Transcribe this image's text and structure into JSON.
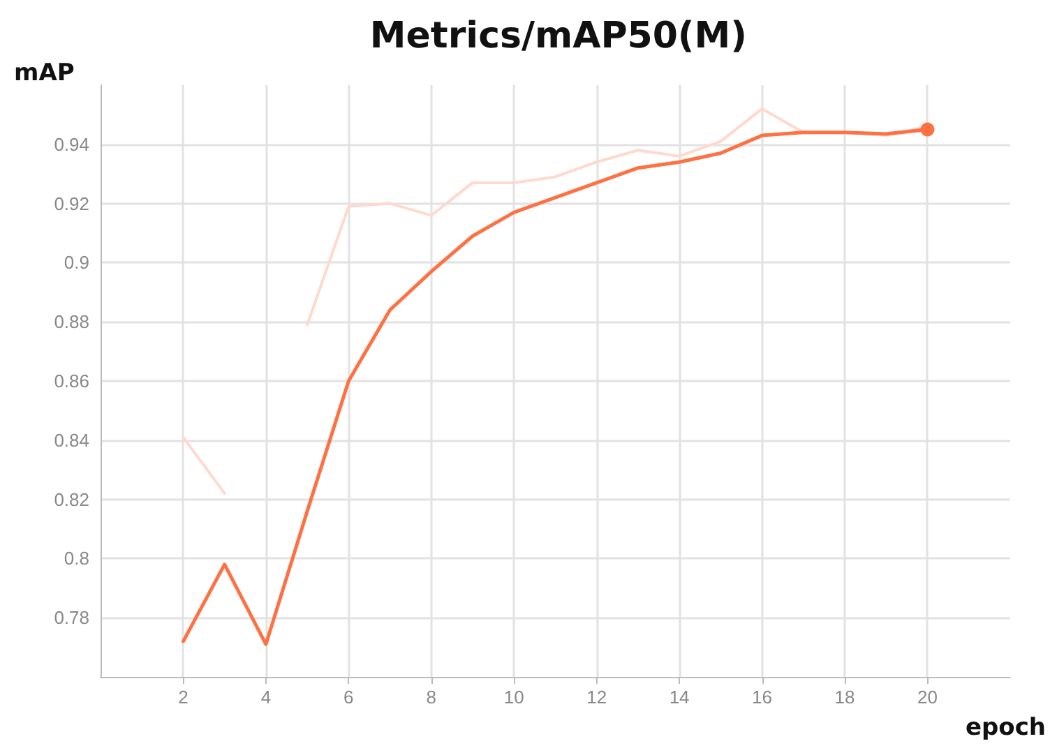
{
  "chart_data": {
    "type": "line",
    "title": "Metrics/mAP50(M)",
    "xlabel": "epoch",
    "ylabel": "mAP",
    "x": [
      2,
      3,
      4,
      5,
      6,
      7,
      8,
      9,
      10,
      11,
      12,
      13,
      14,
      15,
      16,
      17,
      18,
      19,
      20
    ],
    "series": [
      {
        "color": "#ffd9ce",
        "values": [
          0.841,
          0.822,
          null,
          0.879,
          0.919,
          0.92,
          0.916,
          0.927,
          0.927,
          0.929,
          0.934,
          0.938,
          0.936,
          0.941,
          0.952,
          0.944,
          0.944,
          0.943,
          0.946
        ]
      },
      {
        "color": "#ff7043",
        "values": [
          0.772,
          0.798,
          0.771,
          0.816,
          0.86,
          0.884,
          0.897,
          0.909,
          0.917,
          0.922,
          0.927,
          0.932,
          0.934,
          0.937,
          0.943,
          0.944,
          0.944,
          0.9435,
          0.945
        ]
      }
    ],
    "xlim": [
      0,
      22
    ],
    "xticks": [
      2,
      4,
      6,
      8,
      10,
      12,
      14,
      16,
      18,
      20
    ],
    "ylim": [
      0.76,
      0.96
    ],
    "yticks": [
      0.78,
      0.8,
      0.82,
      0.84,
      0.86,
      0.88,
      0.9,
      0.92,
      0.94
    ],
    "grid": true,
    "marker": "none",
    "line_style": "solid"
  }
}
